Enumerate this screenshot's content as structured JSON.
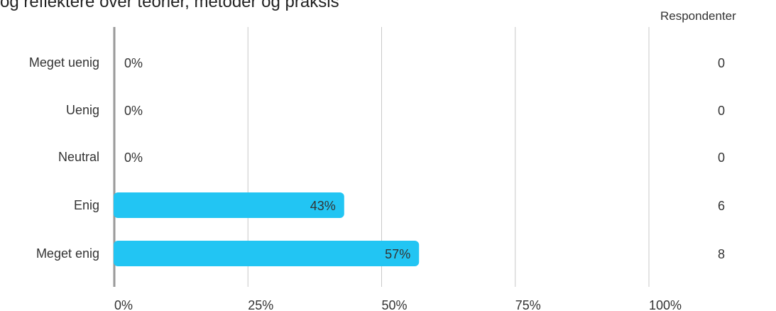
{
  "title": "og reflektere over teorier, metoder og praksis",
  "respondents_header": "Respondenter",
  "chart_data": {
    "type": "bar",
    "orientation": "horizontal",
    "categories": [
      "Meget uenig",
      "Uenig",
      "Neutral",
      "Enig",
      "Meget enig"
    ],
    "values": [
      0,
      0,
      0,
      43,
      57
    ],
    "value_labels": [
      "0%",
      "0%",
      "0%",
      "43%",
      "57%"
    ],
    "respondents": [
      "0",
      "0",
      "0",
      "6",
      "8"
    ],
    "xlim": [
      0,
      100
    ],
    "xticks": [
      "0%",
      "25%",
      "50%",
      "75%",
      "100%"
    ],
    "grid": true,
    "bar_color": "#22c5f3"
  }
}
